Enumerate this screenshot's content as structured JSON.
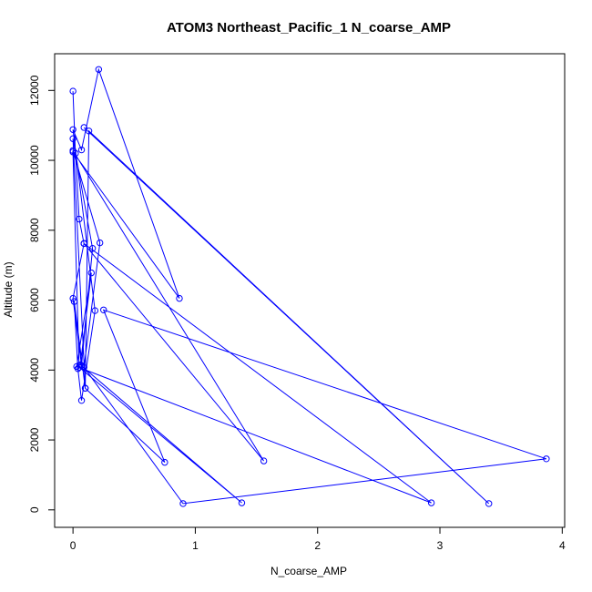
{
  "chart_data": {
    "type": "line",
    "title": "ATOM3 Northeast_Pacific_1 N_coarse_AMP",
    "xlabel": "N_coarse_AMP",
    "ylabel": "Altitude (m)",
    "xlim": [
      -0.15,
      4.02
    ],
    "ylim": [
      -500,
      13050
    ],
    "xticks": [
      0,
      1,
      2,
      3,
      4
    ],
    "xtick_labels": [
      "0",
      "1",
      "2",
      "3",
      "4"
    ],
    "yticks": [
      0,
      2000,
      4000,
      6000,
      8000,
      10000,
      12000
    ],
    "ytick_labels": [
      "0",
      "2000",
      "4000",
      "6000",
      "8000",
      "10000",
      "12000"
    ],
    "grid": false,
    "color": "#0000ff",
    "series": [
      {
        "x": [
          0.0,
          0.02,
          0.05,
          0.09,
          0.0,
          0.07,
          0.16,
          0.0,
          0.1,
          0.01,
          0.04,
          0.07,
          0.18,
          0.0,
          0.07,
          0.21,
          0.87,
          0.0,
          0.05,
          1.38,
          0.06,
          0.15,
          0.03,
          2.93,
          0.09,
          1.56,
          0.0,
          0.22,
          0.09,
          0.9,
          3.87,
          0.25,
          0.75,
          0.1,
          0.13,
          3.4,
          0.09
        ],
        "y": [
          11980,
          10200,
          8320,
          7620,
          6050,
          4130,
          7480,
          10620,
          3480,
          5960,
          4040,
          3130,
          5700,
          10880,
          10300,
          12600,
          6050,
          10240,
          4080,
          200,
          4150,
          6780,
          4100,
          200,
          7620,
          1400,
          10280,
          7640,
          4080,
          180,
          1460,
          5720,
          1360,
          3480,
          10840,
          180,
          10940
        ]
      }
    ]
  }
}
